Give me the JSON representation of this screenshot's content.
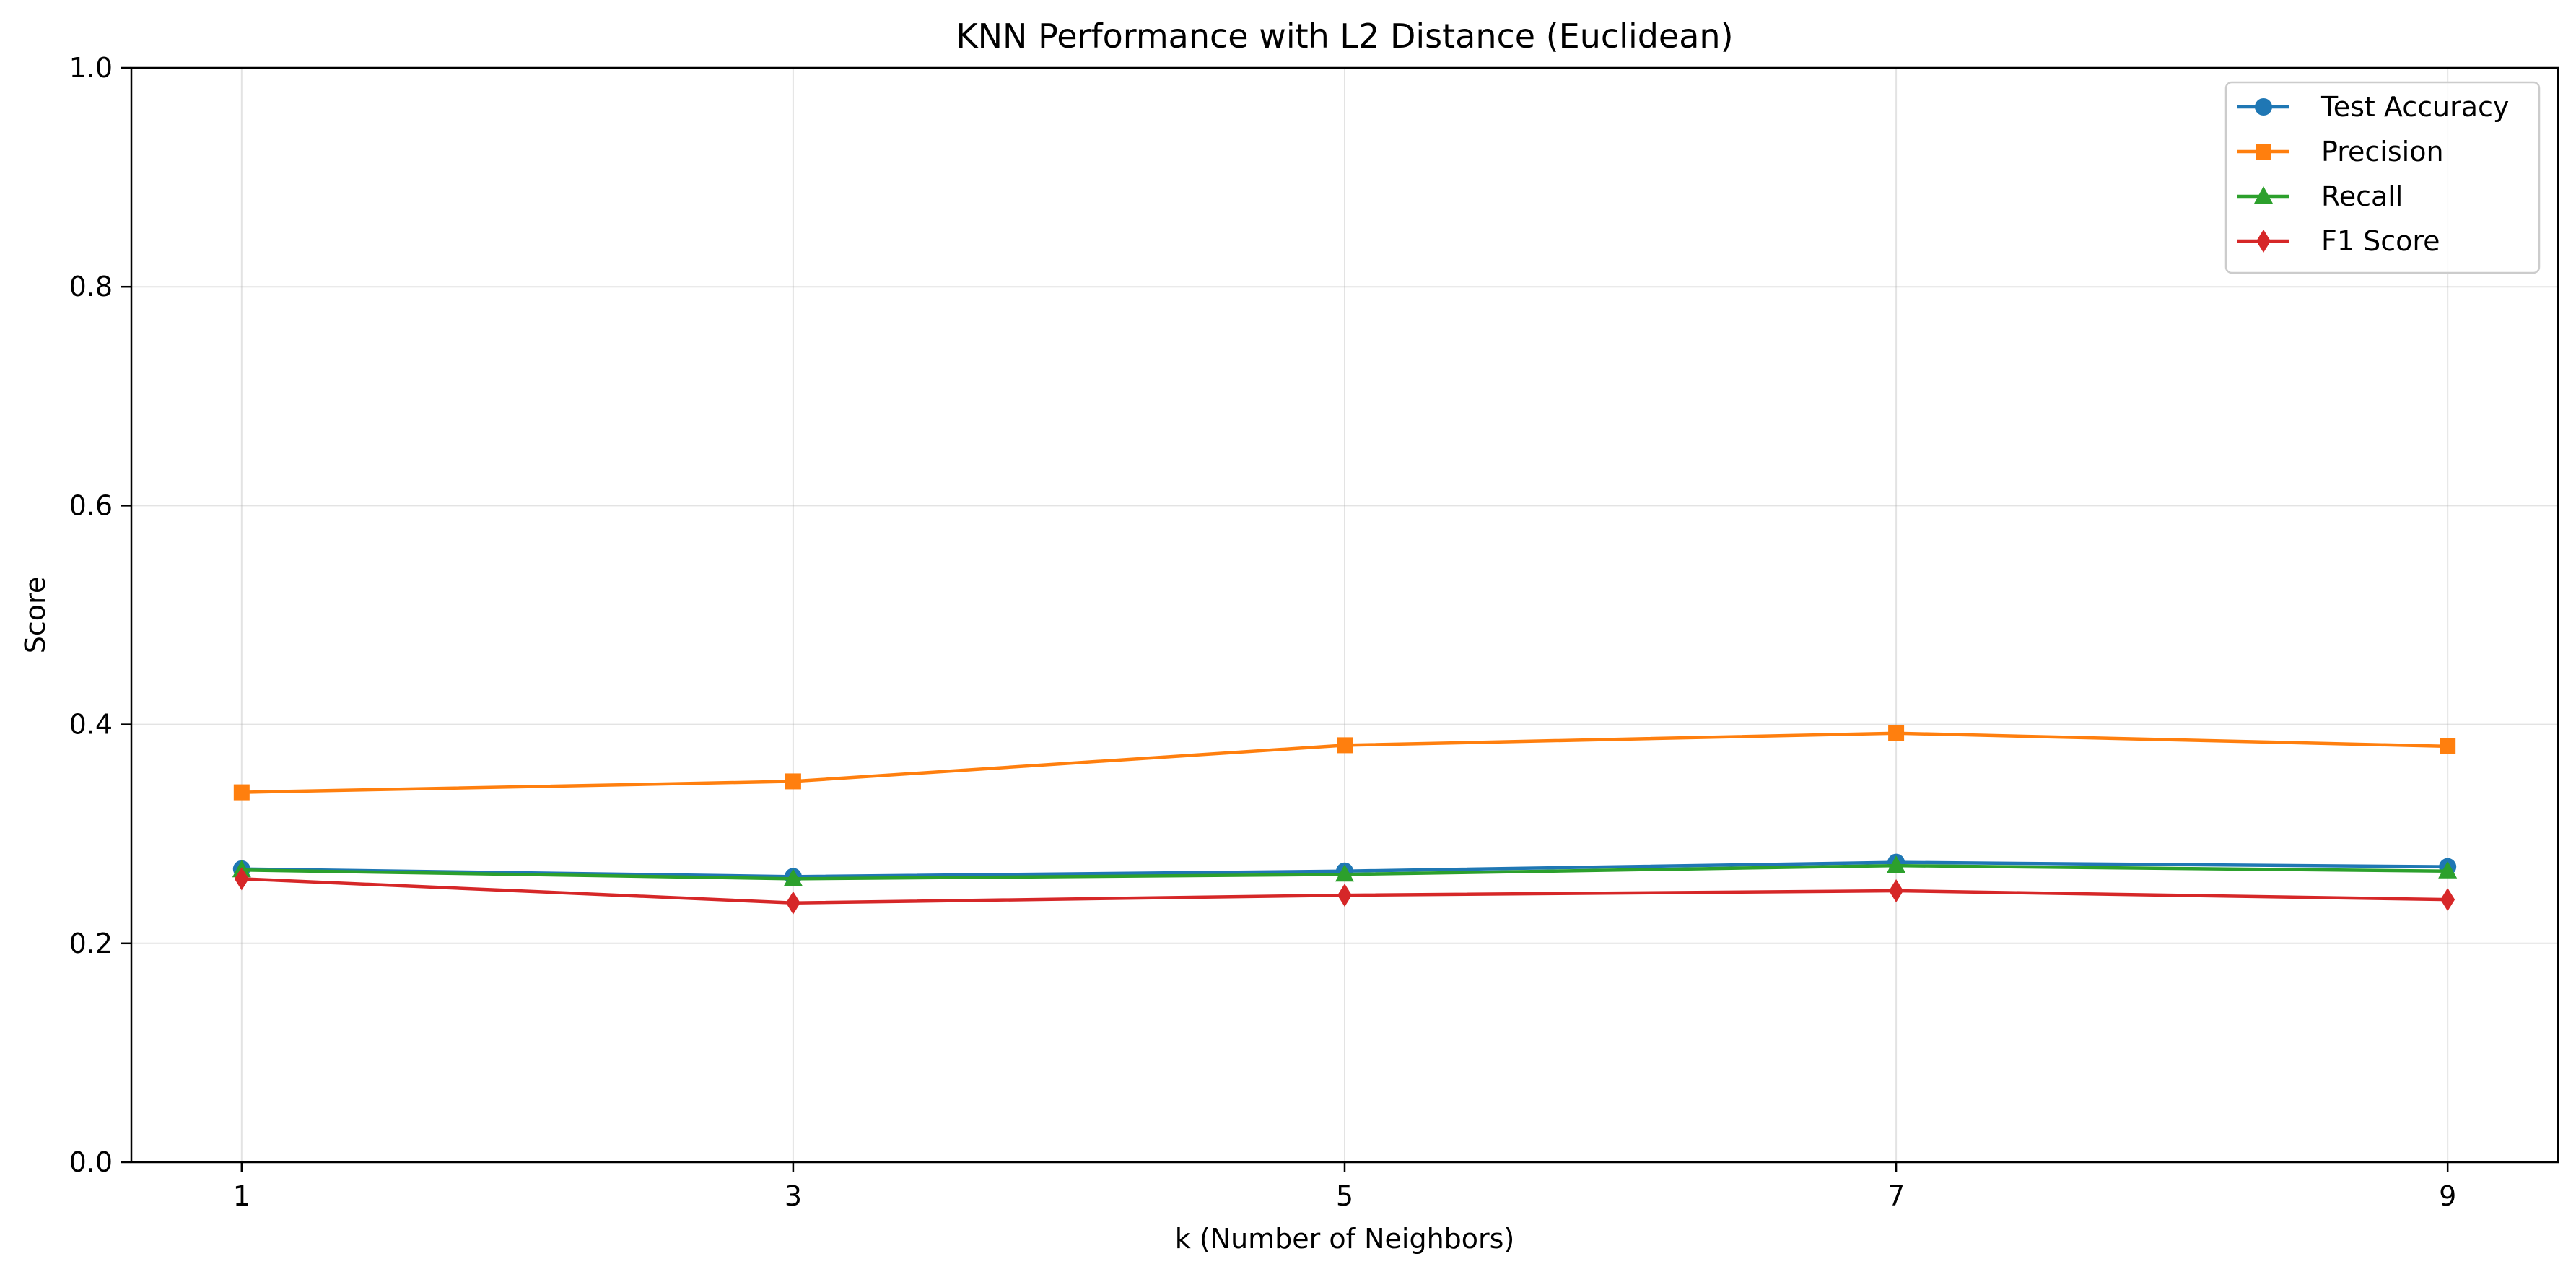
{
  "chart_data": {
    "type": "line",
    "title": "KNN Performance with L2 Distance (Euclidean)",
    "xlabel": "k (Number of Neighbors)",
    "ylabel": "Score",
    "x": [
      1,
      3,
      5,
      7,
      9
    ],
    "xlim": [
      0.6,
      9.4
    ],
    "ylim": [
      0.0,
      1.0
    ],
    "yticks": [
      0.0,
      0.2,
      0.4,
      0.6,
      0.8,
      1.0
    ],
    "ytick_labels": [
      "0.0",
      "0.2",
      "0.4",
      "0.6",
      "0.8",
      "1.0"
    ],
    "xtick_labels": [
      "1",
      "3",
      "5",
      "7",
      "9"
    ],
    "grid": true,
    "legend_position": "top-right",
    "series": [
      {
        "name": "Test Accuracy",
        "color": "#1f77b4",
        "marker": "circle",
        "values": [
          0.268,
          0.261,
          0.266,
          0.274,
          0.27
        ]
      },
      {
        "name": "Precision",
        "color": "#ff7f0e",
        "marker": "square",
        "values": [
          0.338,
          0.348,
          0.381,
          0.392,
          0.38
        ]
      },
      {
        "name": "Recall",
        "color": "#2ca02c",
        "marker": "triangle",
        "values": [
          0.267,
          0.259,
          0.263,
          0.271,
          0.266
        ]
      },
      {
        "name": "F1 Score",
        "color": "#d62728",
        "marker": "diamond",
        "values": [
          0.259,
          0.237,
          0.244,
          0.248,
          0.24
        ]
      }
    ]
  }
}
